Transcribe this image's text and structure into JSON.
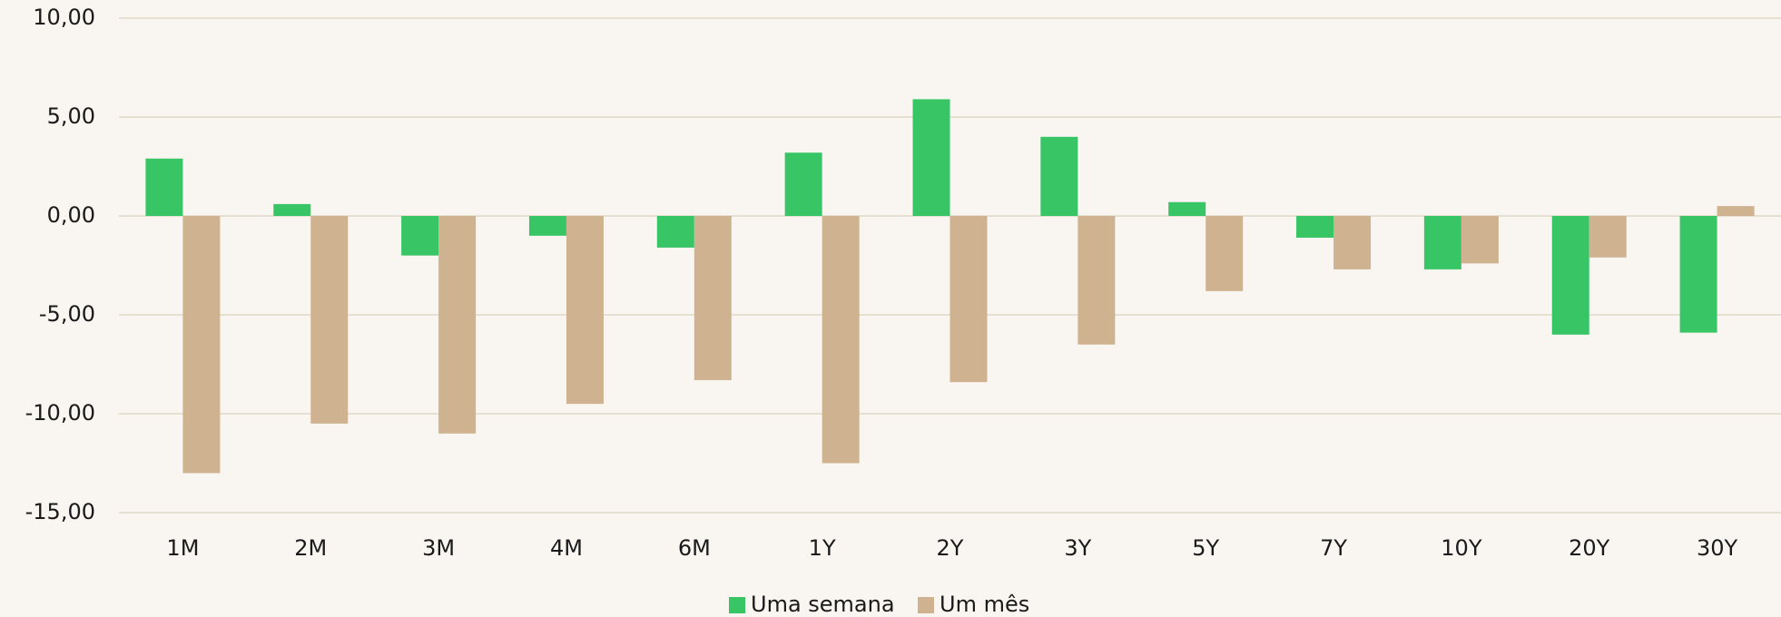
{
  "chart_data": {
    "type": "bar",
    "categories": [
      "1M",
      "2M",
      "3M",
      "4M",
      "6M",
      "1Y",
      "2Y",
      "3Y",
      "5Y",
      "7Y",
      "10Y",
      "20Y",
      "30Y"
    ],
    "series": [
      {
        "name": "Uma semana",
        "color": "#38c566",
        "values": [
          2.9,
          0.6,
          -2.0,
          -1.0,
          -1.6,
          3.2,
          5.9,
          4.0,
          0.7,
          -1.1,
          -2.7,
          -6.0,
          -5.9
        ]
      },
      {
        "name": "Um mês",
        "color": "#cfb391",
        "values": [
          -13.0,
          -10.5,
          -11.0,
          -9.5,
          -8.3,
          -12.5,
          -8.4,
          -6.5,
          -3.8,
          -2.7,
          -2.4,
          -2.1,
          0.5
        ]
      }
    ],
    "ylim": [
      -15,
      10
    ],
    "yticks": [
      {
        "value": -15,
        "label": "-15,00"
      },
      {
        "value": -10,
        "label": "-10,00"
      },
      {
        "value": -5,
        "label": "-5,00"
      },
      {
        "value": 0,
        "label": "0,00"
      },
      {
        "value": 5,
        "label": "5,00"
      },
      {
        "value": 10,
        "label": "10,00"
      }
    ],
    "grid": true,
    "legend": "bottom"
  }
}
